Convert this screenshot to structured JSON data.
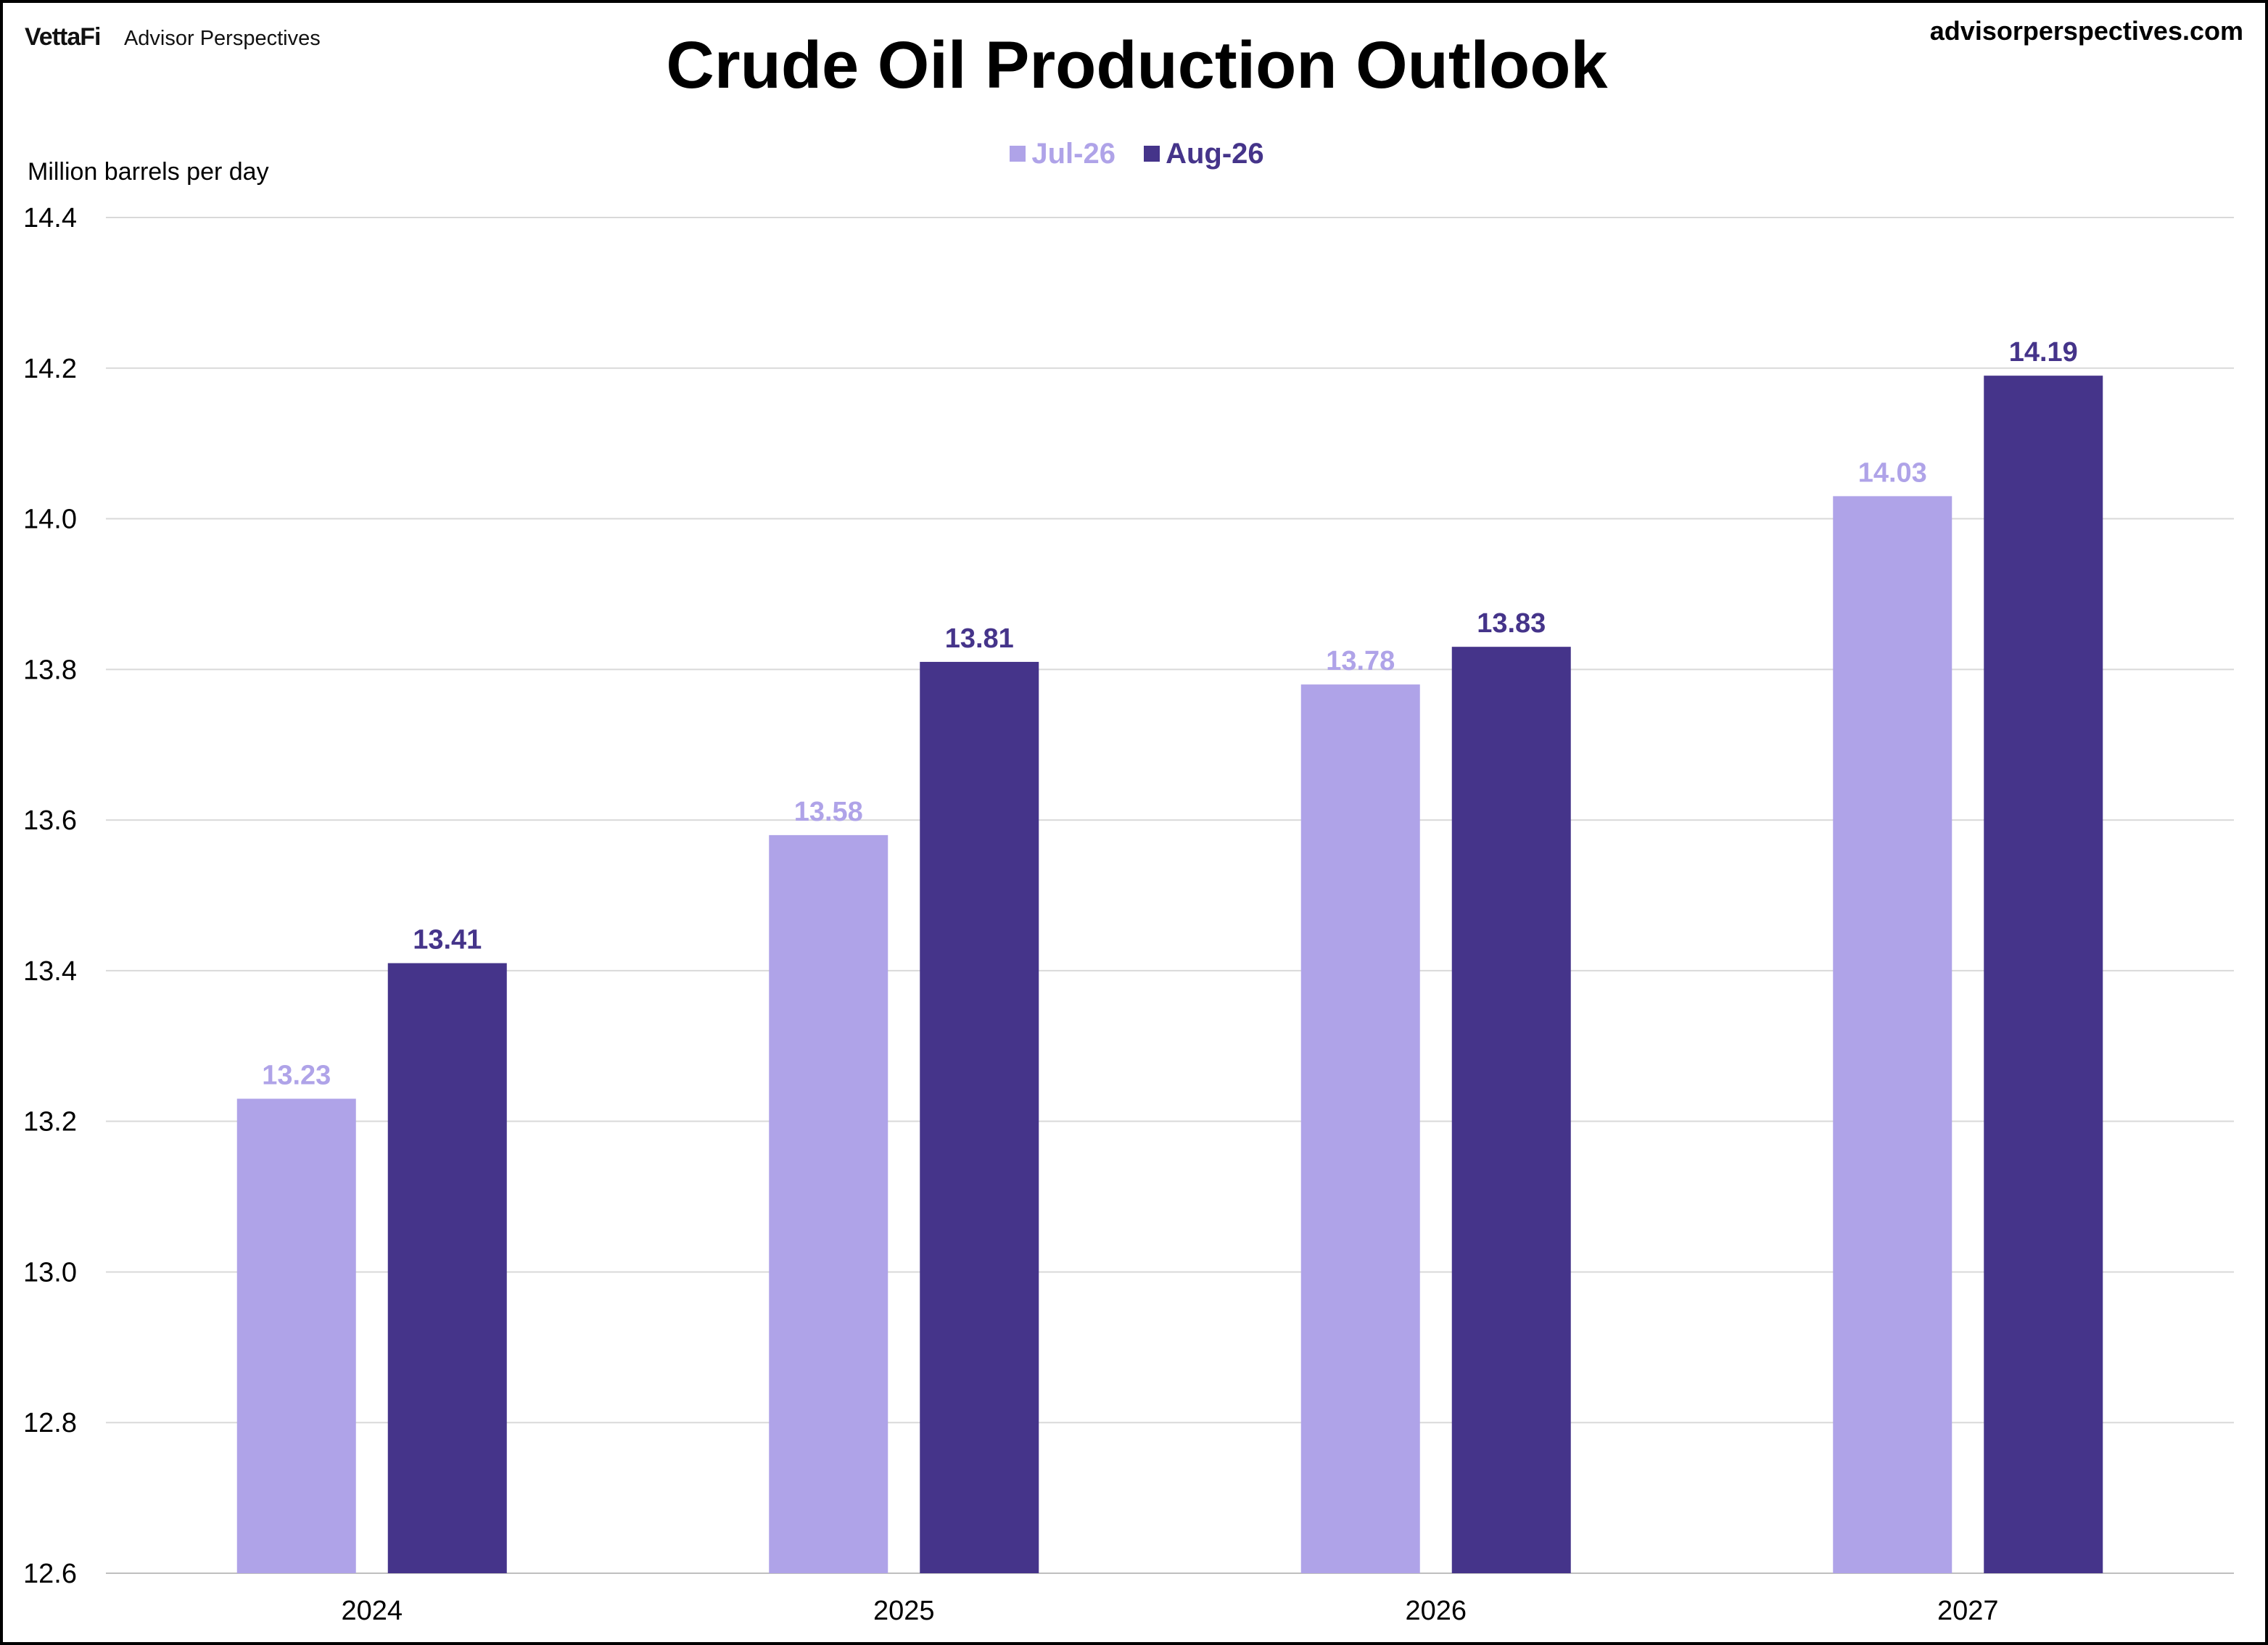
{
  "header": {
    "brand_logo": "VettaFi",
    "brand_name": "Advisor Perspectives",
    "site_url": "advisorperspectives.com"
  },
  "chart_data": {
    "type": "bar",
    "title": "Crude Oil Production Outlook",
    "ylabel": "Million barrels per day",
    "xlabel": "",
    "categories": [
      "2024",
      "2025",
      "2026",
      "2027"
    ],
    "series": [
      {
        "name": "Jul-26",
        "color": "#AFA3E8",
        "values": [
          13.23,
          13.58,
          13.78,
          14.03
        ]
      },
      {
        "name": "Aug-26",
        "color": "#45348A",
        "values": [
          13.41,
          13.81,
          13.83,
          14.19
        ]
      }
    ],
    "ylim": [
      12.6,
      14.4
    ],
    "yticks": [
      "12.6",
      "12.8",
      "13.0",
      "13.2",
      "13.4",
      "13.6",
      "13.8",
      "14.0",
      "14.2",
      "14.4"
    ],
    "grid": true,
    "legend_position": "top-center"
  }
}
